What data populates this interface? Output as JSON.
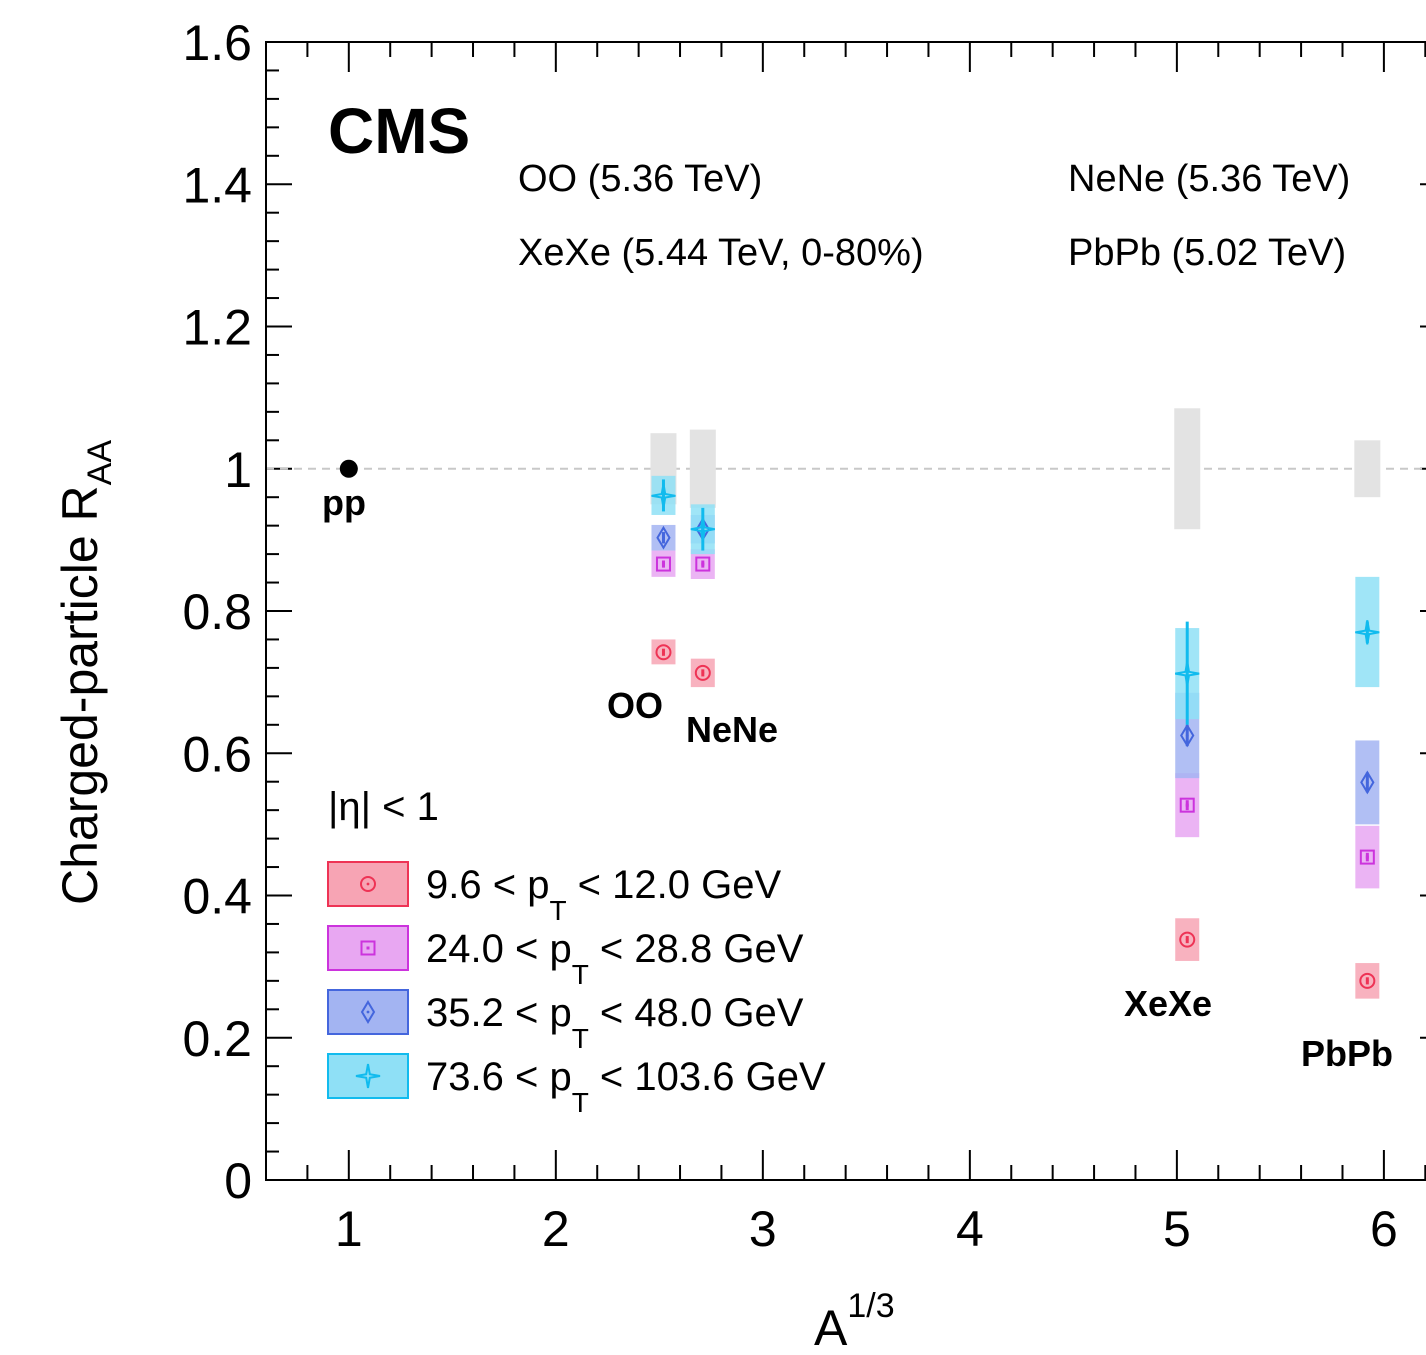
{
  "chart_data": {
    "type": "scatter",
    "title": "",
    "xlabel": "A",
    "xlabel_sup": "1/3",
    "ylabel": "Charged-particle R",
    "ylabel_sub": "AA",
    "xlim": [
      0.6,
      6.3
    ],
    "ylim": [
      0,
      1.6
    ],
    "x_ticks": [
      "1",
      "2",
      "3",
      "4",
      "5",
      "6"
    ],
    "y_ticks": [
      "0",
      "0.2",
      "0.4",
      "0.6",
      "0.8",
      "1",
      "1.2",
      "1.4",
      "1.6"
    ],
    "reference_line": {
      "y": 1.0,
      "style": "dashed",
      "color": "#c8c8c8"
    },
    "experiment_label": "CMS",
    "system_texts": [
      "OO (5.36 TeV)",
      "NeNe (5.36 TeV)",
      "XeXe (5.44 TeV, 0-80%)",
      "PbPb (5.02 TeV)"
    ],
    "legend_header": "|η| < 1",
    "legend_placement": "bottom-left",
    "pp_reference": {
      "label": "pp",
      "x": 1.0,
      "y": 1.0,
      "color": "#000000"
    },
    "systems": [
      {
        "label": "OO",
        "x": 2.52,
        "norm_unc": [
          0.95,
          1.05
        ]
      },
      {
        "label": "NeNe",
        "x": 2.71,
        "norm_unc": [
          0.945,
          1.055
        ]
      },
      {
        "label": "XeXe",
        "x": 5.05,
        "norm_unc": [
          0.915,
          1.085
        ]
      },
      {
        "label": "PbPb",
        "x": 5.92,
        "norm_unc": [
          0.96,
          1.04
        ]
      }
    ],
    "series": [
      {
        "name": "9.6 < p_T < 12.0 GeV",
        "legend_lhs": "9.6 < p",
        "legend_rhs": "< 12.0 GeV",
        "marker": "circle",
        "color": "#ee3355",
        "fill": "#f7a4b4",
        "points": [
          {
            "x": 2.52,
            "y": 0.742,
            "sys": [
              0.725,
              0.76
            ],
            "stat": [
              0.737,
              0.747
            ]
          },
          {
            "x": 2.71,
            "y": 0.713,
            "sys": [
              0.693,
              0.733
            ],
            "stat": [
              0.708,
              0.718
            ]
          },
          {
            "x": 5.05,
            "y": 0.338,
            "sys": [
              0.308,
              0.368
            ],
            "stat": [
              0.333,
              0.343
            ]
          },
          {
            "x": 5.92,
            "y": 0.28,
            "sys": [
              0.255,
              0.305
            ],
            "stat": [
              0.275,
              0.285
            ]
          }
        ]
      },
      {
        "name": "24.0 < p_T < 28.8 GeV",
        "legend_lhs": "24.0 < p",
        "legend_rhs": "< 28.8 GeV",
        "marker": "square",
        "color": "#cc33dd",
        "fill": "#e8a7f2",
        "points": [
          {
            "x": 2.52,
            "y": 0.866,
            "sys": [
              0.848,
              0.885
            ],
            "stat": [
              0.861,
              0.871
            ]
          },
          {
            "x": 2.71,
            "y": 0.866,
            "sys": [
              0.845,
              0.887
            ],
            "stat": [
              0.861,
              0.871
            ]
          },
          {
            "x": 5.05,
            "y": 0.527,
            "sys": [
              0.482,
              0.572
            ],
            "stat": [
              0.52,
              0.534
            ]
          },
          {
            "x": 5.92,
            "y": 0.454,
            "sys": [
              0.41,
              0.498
            ],
            "stat": [
              0.448,
              0.46
            ]
          }
        ]
      },
      {
        "name": "35.2 < p_T < 48.0 GeV",
        "legend_lhs": "35.2 < p",
        "legend_rhs": "< 48.0 GeV",
        "marker": "diamond",
        "color": "#4466dd",
        "fill": "#a3b4f2",
        "points": [
          {
            "x": 2.52,
            "y": 0.903,
            "sys": [
              0.885,
              0.921
            ],
            "stat": [
              0.895,
              0.911
            ]
          },
          {
            "x": 2.71,
            "y": 0.915,
            "sys": [
              0.895,
              0.935
            ],
            "stat": [
              0.905,
              0.925
            ]
          },
          {
            "x": 5.05,
            "y": 0.625,
            "sys": [
              0.565,
              0.685
            ],
            "stat": [
              0.61,
              0.64
            ]
          },
          {
            "x": 5.92,
            "y": 0.559,
            "sys": [
              0.5,
              0.618
            ],
            "stat": [
              0.545,
              0.573
            ]
          }
        ]
      },
      {
        "name": "73.6 < p_T < 103.6 GeV",
        "legend_lhs": "73.6 < p",
        "legend_rhs": "< 103.6 GeV",
        "marker": "star",
        "color": "#11bbee",
        "fill": "#8fe0f6",
        "points": [
          {
            "x": 2.52,
            "y": 0.962,
            "sys": [
              0.935,
              0.99
            ],
            "stat": [
              0.94,
              0.985
            ]
          },
          {
            "x": 2.71,
            "y": 0.915,
            "sys": [
              0.88,
              0.95
            ],
            "stat": [
              0.885,
              0.945
            ]
          },
          {
            "x": 5.05,
            "y": 0.712,
            "sys": [
              0.648,
              0.776
            ],
            "stat": [
              0.64,
              0.785
            ]
          },
          {
            "x": 5.92,
            "y": 0.77,
            "sys": [
              0.693,
              0.848
            ],
            "stat": [
              0.755,
              0.785
            ]
          }
        ]
      }
    ]
  }
}
